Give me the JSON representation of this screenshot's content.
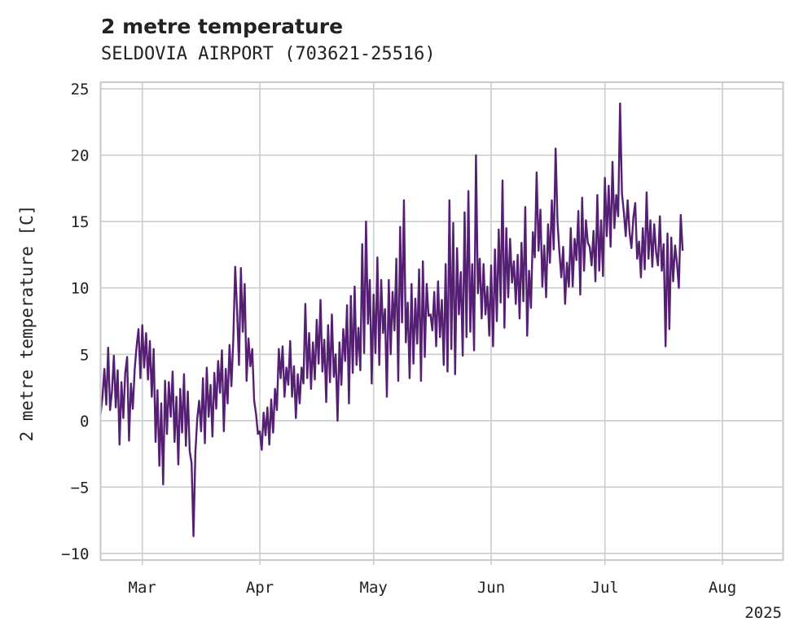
{
  "chart_data": {
    "type": "line",
    "title": "2 metre temperature",
    "subtitle": "SELDOVIA AIRPORT (703621-25516)",
    "ylabel": "2 metre temperature [C]",
    "xlabel": "",
    "x_tick_labels": [
      "Mar",
      "Apr",
      "May",
      "Jun",
      "Jul",
      "Aug"
    ],
    "x_tick_dates": [
      "2025-03-01",
      "2025-04-01",
      "2025-05-01",
      "2025-06-01",
      "2025-07-01",
      "2025-08-01"
    ],
    "x_year_label": "2025",
    "xlim": [
      "2025-02-18",
      "2025-08-17"
    ],
    "ylim": [
      -10.5,
      25.5
    ],
    "y_ticks": [
      -10,
      -5,
      0,
      5,
      10,
      15,
      20,
      25
    ],
    "grid": true,
    "series_color": "#551f73",
    "series": [
      {
        "x_start": "2025-02-18",
        "step_hours": 12,
        "values": [
          0.5,
          1.8,
          3.9,
          1.2,
          5.5,
          0.8,
          2.2,
          4.9,
          1.0,
          3.8,
          -1.8,
          2.9,
          0.2,
          3.6,
          4.8,
          -1.5,
          2.8,
          0.9,
          3.9,
          5.6,
          6.9,
          3.2,
          7.2,
          4.0,
          6.6,
          3.1,
          6.0,
          1.8,
          5.4,
          -1.6,
          2.3,
          -3.4,
          1.3,
          -4.8,
          3.0,
          -1.0,
          2.9,
          0.3,
          3.7,
          -1.6,
          1.8,
          -3.3,
          2.4,
          -0.9,
          3.5,
          -1.9,
          2.2,
          -2.3,
          -3.2,
          -8.7,
          -2.4,
          0.2,
          1.5,
          -0.8,
          3.2,
          -1.7,
          4.0,
          0.3,
          2.7,
          -1.2,
          3.6,
          0.9,
          4.5,
          2.1,
          5.3,
          -0.8,
          3.9,
          1.3,
          5.7,
          2.6,
          6.1,
          11.6,
          8.3,
          4.2,
          11.5,
          6.7,
          10.3,
          3.0,
          6.2,
          4.1,
          5.4,
          1.5,
          0.5,
          -1.0,
          -0.8,
          -2.2,
          0.6,
          -1.1,
          1.0,
          -1.8,
          1.6,
          -0.9,
          2.4,
          0.8,
          5.4,
          3.2,
          5.6,
          1.8,
          4.0,
          2.7,
          6.0,
          1.8,
          4.1,
          0.2,
          3.5,
          1.3,
          4.0,
          2.8,
          8.8,
          3.2,
          6.6,
          2.4,
          5.9,
          3.1,
          7.6,
          4.3,
          9.1,
          3.7,
          6.1,
          1.4,
          7.2,
          2.9,
          8.0,
          3.3,
          5.0,
          0.0,
          5.9,
          2.7,
          6.9,
          4.5,
          8.7,
          1.3,
          9.4,
          3.6,
          10.1,
          4.2,
          7.0,
          3.8,
          13.3,
          5.1,
          15.0,
          7.3,
          10.6,
          2.8,
          9.5,
          5.1,
          12.3,
          4.2,
          10.6,
          6.6,
          8.4,
          1.8,
          10.6,
          5.0,
          9.7,
          6.8,
          12.2,
          3.0,
          14.6,
          7.4,
          16.6,
          5.9,
          8.9,
          3.2,
          10.3,
          4.3,
          9.2,
          5.8,
          11.4,
          3.0,
          12.0,
          4.8,
          10.3,
          7.9,
          8.0,
          6.8,
          9.7,
          5.6,
          10.5,
          6.3,
          9.1,
          4.2,
          11.8,
          3.7,
          16.6,
          5.4,
          14.9,
          3.5,
          13.0,
          8.0,
          11.2,
          4.9,
          15.7,
          6.3,
          17.3,
          6.7,
          11.8,
          5.3,
          20.0,
          9.6,
          12.2,
          7.7,
          11.8,
          8.0,
          10.1,
          6.4,
          11.7,
          5.6,
          12.9,
          7.5,
          14.4,
          8.9,
          18.1,
          7.0,
          14.5,
          9.3,
          13.7,
          10.4,
          12.0,
          8.8,
          12.5,
          7.7,
          13.4,
          9.0,
          16.1,
          6.4,
          11.3,
          8.5,
          14.2,
          12.3,
          18.7,
          12.8,
          15.9,
          10.1,
          13.2,
          9.3,
          14.8,
          11.9,
          16.6,
          12.9,
          20.5,
          15.0,
          12.7,
          10.8,
          13.1,
          8.8,
          11.9,
          10.1,
          14.5,
          10.1,
          13.7,
          12.1,
          15.8,
          9.5,
          16.8,
          11.3,
          15.1,
          13.4,
          13.1,
          11.7,
          14.3,
          10.5,
          17.0,
          11.3,
          15.1,
          10.9,
          18.3,
          13.9,
          17.7,
          13.1,
          19.5,
          14.5,
          17.0,
          15.4,
          23.9,
          17.1,
          15.7,
          13.9,
          16.6,
          14.2,
          13.0,
          15.3,
          16.4,
          12.2,
          13.5,
          10.8,
          14.5,
          11.4,
          17.2,
          12.2,
          15.1,
          11.6,
          14.8,
          12.7,
          11.7,
          15.4,
          11.3,
          13.3,
          5.6,
          14.1,
          6.9,
          13.8,
          10.5,
          13.2,
          11.9,
          10.0,
          15.5,
          12.8
        ]
      }
    ]
  }
}
